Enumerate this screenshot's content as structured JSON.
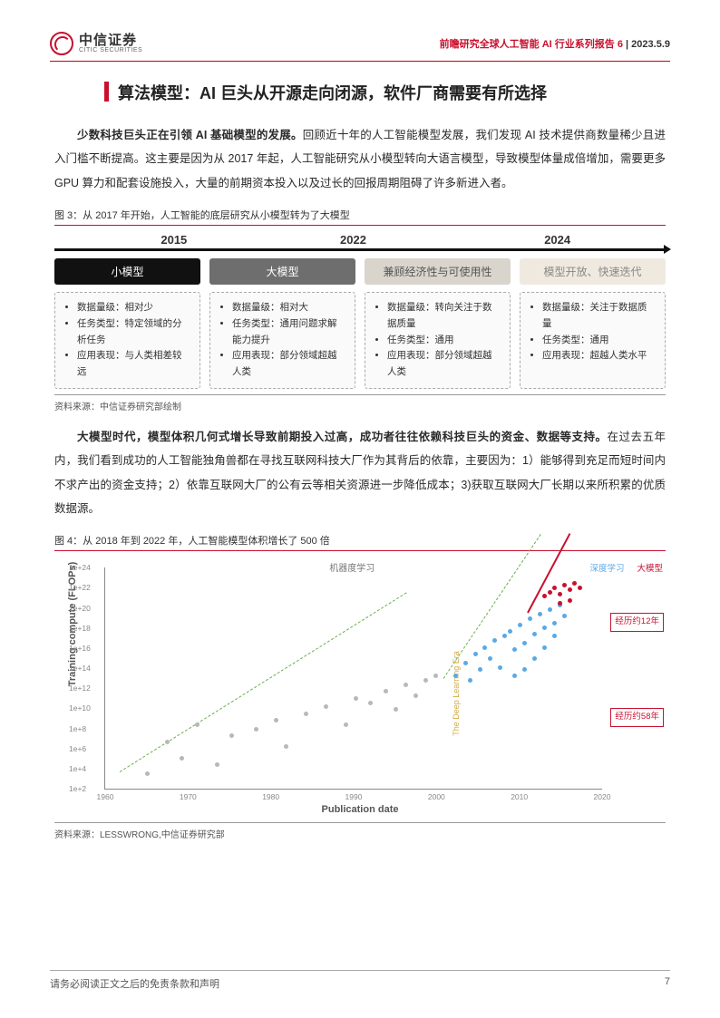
{
  "header": {
    "logo_cn": "中信证券",
    "logo_en": "CITIC SECURITIES",
    "report_series": "前瞻研究全球人工智能 AI 行业系列报告 6",
    "date": "2023.5.9"
  },
  "section_title": "算法模型：AI 巨头从开源走向闭源，软件厂商需要有所选择",
  "para1_bold": "少数科技巨头正在引领 AI 基础模型的发展。",
  "para1_rest": "回顾近十年的人工智能模型发展，我们发现 AI 技术提供商数量稀少且进入门槛不断提高。这主要是因为从 2017 年起，人工智能研究从小模型转向大语言模型，导致模型体量成倍增加，需要更多 GPU 算力和配套设施投入，大量的前期资本投入以及过长的回报周期阻碍了许多新进入者。",
  "fig3": {
    "caption": "图 3：从 2017 年开始，人工智能的底层研究从小模型转为了大模型",
    "years": [
      "2015",
      "2022",
      "2024"
    ],
    "stages": [
      {
        "label": "小模型",
        "bg": "#111111"
      },
      {
        "label": "大模型",
        "bg": "#6e6e6e"
      },
      {
        "label": "兼顾经济性与可使用性",
        "bg": "#d9d4cc",
        "fg": "#555"
      },
      {
        "label": "模型开放、快速迭代",
        "bg": "#efe9df",
        "fg": "#888"
      }
    ],
    "boxes": [
      [
        "数据量级：相对少",
        "任务类型：特定领域的分析任务",
        "应用表现：与人类相差较远"
      ],
      [
        "数据量级：相对大",
        "任务类型：通用问题求解能力提升",
        "应用表现：部分领域超越人类"
      ],
      [
        "数据量级：转向关注于数据质量",
        "任务类型：通用",
        "应用表现：部分领域超越人类"
      ],
      [
        "数据量级：关注于数据质量",
        "任务类型：通用",
        "应用表现：超越人类水平"
      ]
    ],
    "source": "资料来源：中信证券研究部绘制"
  },
  "para2_bold": "大模型时代，模型体积几何式增长导致前期投入过高，成功者往往依赖科技巨头的资金、数据等支持。",
  "para2_rest": "在过去五年内，我们看到成功的人工智能独角兽都在寻找互联网科技大厂作为其背后的依靠，主要因为：1）能够得到充足而短时间内不求产出的资金支持；2）依靠互联网大厂的公有云等相关资源进一步降低成本；3)获取互联网大厂长期以来所积累的优质数据源。",
  "fig4": {
    "caption": "图 4：从 2018 年到 2022 年，人工智能模型体积增长了 500 倍",
    "ylabel": "Training compute (FLOPs)",
    "xlabel": "Publication date",
    "legend_center": "机器度学习",
    "legend_right": [
      "深度学习",
      "大模型"
    ],
    "y_ticks": [
      "1e+2",
      "1e+4",
      "1e+6",
      "1e+8",
      "1e+10",
      "1e+12",
      "1e+14",
      "1e+16",
      "1e+18",
      "1e+20",
      "1e+22",
      "1e+24"
    ],
    "x_ticks": [
      "1960",
      "1970",
      "1980",
      "1990",
      "2000",
      "2010",
      "2020"
    ],
    "anno1": "经历约12年",
    "anno2": "经历约58年",
    "era_label": "The Deep Learning Era",
    "colors": {
      "grey_pt": "#b8b8b8",
      "blue_pt": "#5aa9e6",
      "red_pt": "#c8102e",
      "green_line": "#6ab04c",
      "red_line": "#c8102e"
    },
    "grey_points": [
      [
        8,
        92
      ],
      [
        12,
        78
      ],
      [
        15,
        85
      ],
      [
        18,
        70
      ],
      [
        22,
        88
      ],
      [
        25,
        75
      ],
      [
        30,
        72
      ],
      [
        34,
        68
      ],
      [
        36,
        80
      ],
      [
        40,
        65
      ],
      [
        44,
        62
      ],
      [
        48,
        70
      ],
      [
        50,
        58
      ],
      [
        53,
        60
      ],
      [
        56,
        55
      ],
      [
        58,
        63
      ],
      [
        60,
        52
      ],
      [
        62,
        57
      ],
      [
        64,
        50
      ],
      [
        66,
        48
      ]
    ],
    "blue_points": [
      [
        70,
        48
      ],
      [
        72,
        42
      ],
      [
        73,
        50
      ],
      [
        74,
        38
      ],
      [
        75,
        45
      ],
      [
        76,
        35
      ],
      [
        77,
        40
      ],
      [
        78,
        32
      ],
      [
        79,
        44
      ],
      [
        80,
        30
      ],
      [
        81,
        28
      ],
      [
        82,
        36
      ],
      [
        83,
        25
      ],
      [
        84,
        33
      ],
      [
        85,
        22
      ],
      [
        86,
        29
      ],
      [
        87,
        20
      ],
      [
        88,
        26
      ],
      [
        89,
        18
      ],
      [
        90,
        24
      ],
      [
        91,
        16
      ],
      [
        92,
        21
      ],
      [
        86,
        40
      ],
      [
        88,
        35
      ],
      [
        90,
        30
      ],
      [
        84,
        45
      ],
      [
        82,
        48
      ]
    ],
    "red_points": [
      [
        88,
        12
      ],
      [
        89,
        10
      ],
      [
        90,
        8
      ],
      [
        91,
        11
      ],
      [
        92,
        7
      ],
      [
        93,
        9
      ],
      [
        94,
        6
      ],
      [
        95,
        8
      ],
      [
        93,
        14
      ],
      [
        91,
        15
      ]
    ],
    "source": "资料来源：LESSWRONG,中信证券研究部"
  },
  "footer": {
    "disclaimer": "请务必阅读正文之后的免责条款和声明",
    "page": "7"
  }
}
